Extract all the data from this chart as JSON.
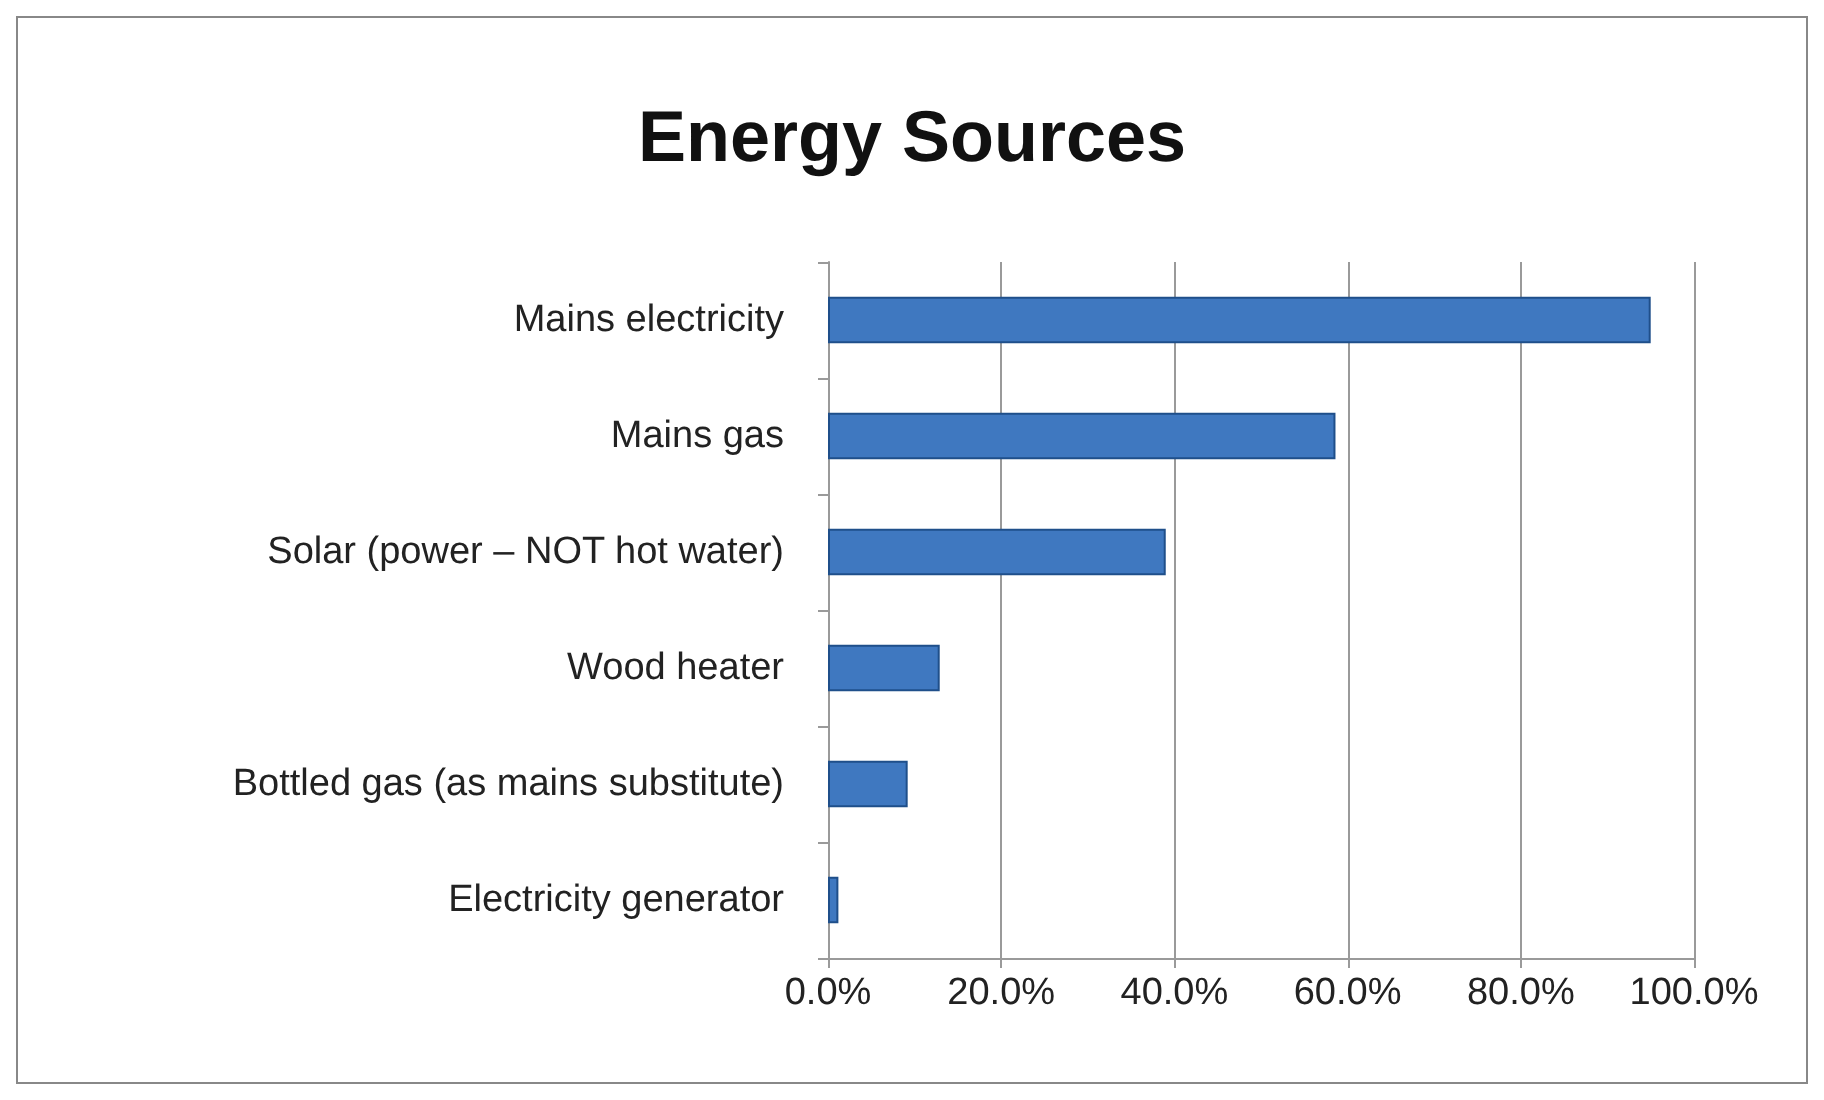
{
  "chart_data": {
    "type": "bar",
    "title": "Energy Sources",
    "orientation": "horizontal",
    "categories": [
      "Mains electricity",
      "Mains gas",
      "Solar (power – NOT hot water)",
      "Wood heater",
      "Bottled gas (as mains substitute)",
      "Electricity generator"
    ],
    "values": [
      95.0,
      58.6,
      39.0,
      12.9,
      9.2,
      1.2
    ],
    "color": "#3f78c0",
    "xlim": [
      0,
      100
    ],
    "xticks": [
      {
        "value": 0,
        "label": "0.0%"
      },
      {
        "value": 20,
        "label": "20.0%"
      },
      {
        "value": 40,
        "label": "40.0%"
      },
      {
        "value": 60,
        "label": "60.0%"
      },
      {
        "value": 80,
        "label": "80.0%"
      },
      {
        "value": 100,
        "label": "100.0%"
      }
    ],
    "grid": "x"
  }
}
